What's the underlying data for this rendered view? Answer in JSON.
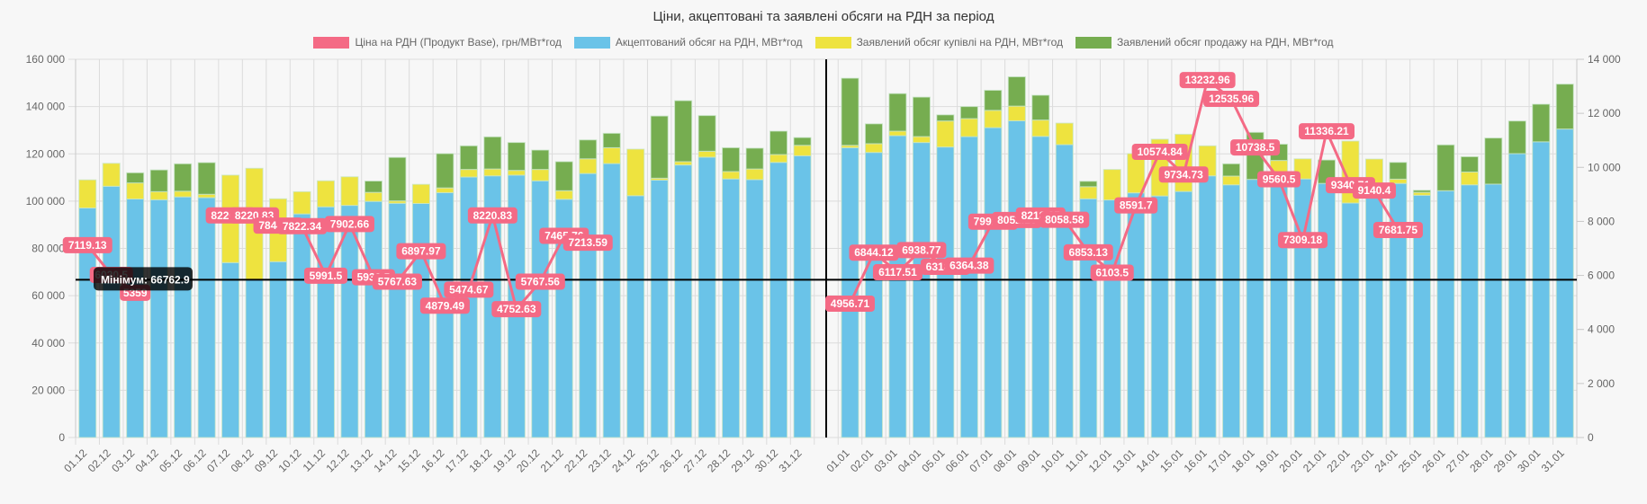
{
  "chart_data": {
    "type": "bar",
    "title": "Ціни, акцептовані та заявлені обсяги на РДН за період",
    "stacked": true,
    "categories": [
      "01.12",
      "02.12",
      "03.12",
      "04.12",
      "05.12",
      "06.12",
      "07.12",
      "08.12",
      "09.12",
      "10.12",
      "11.12",
      "12.12",
      "13.12",
      "14.12",
      "15.12",
      "16.12",
      "17.12",
      "18.12",
      "19.12",
      "20.12",
      "21.12",
      "22.12",
      "23.12",
      "24.12",
      "25.12",
      "26.12",
      "27.12",
      "28.12",
      "29.12",
      "30.12",
      "31.12",
      "01.01",
      "02.01",
      "03.01",
      "04.01",
      "05.01",
      "06.01",
      "07.01",
      "08.01",
      "09.01",
      "10.01",
      "11.01",
      "12.01",
      "13.01",
      "14.01",
      "15.01",
      "16.01",
      "17.01",
      "18.01",
      "19.01",
      "20.01",
      "21.01",
      "22.01",
      "23.01",
      "24.01",
      "25.01",
      "26.01",
      "27.01",
      "28.01",
      "29.01",
      "30.01",
      "31.01"
    ],
    "series": [
      {
        "name": "Ціна на РДН (Продукт Base), грн/МВт*год",
        "type": "line",
        "axis": "right",
        "color": "#f46a85",
        "values": [
          7119.13,
          6020.5,
          5359,
          null,
          null,
          null,
          8220.83,
          8220.83,
          7844.33,
          7822.34,
          5991.5,
          7902.66,
          5932.5,
          5767.63,
          6897.97,
          4879.49,
          5474.67,
          8220.83,
          4752.63,
          5767.56,
          7465.76,
          7213.59,
          null,
          null,
          null,
          null,
          null,
          null,
          null,
          null,
          null,
          4956.71,
          6844.12,
          6117.51,
          6938.77,
          6318.88,
          6364.38,
          7991.24,
          8052.16,
          8218.35,
          8058.58,
          6853.13,
          6103.5,
          8591.7,
          10574.84,
          9734.73,
          13232.96,
          12535.96,
          10738.5,
          9560.5,
          7309.18,
          11336.21,
          9340.71,
          9140.4,
          7681.75,
          null,
          null,
          null,
          null,
          null,
          null,
          null
        ]
      },
      {
        "name": "Акцептований обсяг на РДН, МВт*год",
        "type": "bar",
        "axis": "left",
        "color": "#6ac3e8",
        "values": [
          97100,
          106300,
          100900,
          100600,
          101800,
          101500,
          74000,
          66800,
          74400,
          94600,
          97600,
          98200,
          99900,
          99100,
          99000,
          103600,
          110200,
          110700,
          111000,
          108600,
          100800,
          111700,
          115900,
          102300,
          108900,
          115300,
          118600,
          109400,
          109100,
          116400,
          119200,
          122600,
          120600,
          127700,
          124800,
          122900,
          127300,
          131100,
          134000,
          127400,
          123900,
          101000,
          100500,
          103500,
          102200,
          104100,
          110700,
          106900,
          109200,
          109700,
          109400,
          107500,
          99200,
          103700,
          107500,
          102500,
          104400,
          106900,
          107200,
          120100,
          125100,
          130500
        ]
      },
      {
        "name": "Заявлений обсяг купівлі на РДН, МВт*год",
        "type": "bar",
        "axis": "left",
        "color": "#eee33f",
        "values": [
          11900,
          9700,
          6800,
          3400,
          2400,
          1400,
          37000,
          47100,
          26600,
          9400,
          11000,
          12100,
          3800,
          1000,
          8100,
          2000,
          3200,
          2900,
          2000,
          4800,
          3600,
          6200,
          6700,
          19700,
          800,
          1400,
          2500,
          3100,
          4500,
          3300,
          4400,
          1000,
          3700,
          1900,
          2500,
          11000,
          7600,
          7300,
          6200,
          6900,
          9100,
          5100,
          12900,
          16600,
          24000,
          24200,
          12700,
          3700,
          0,
          7500,
          8500,
          0,
          26200,
          14100,
          1800,
          1200,
          0,
          5400,
          0,
          0,
          0,
          0
        ]
      },
      {
        "name": "Заявлений обсяг продажу на РДН, МВт*год",
        "type": "bar",
        "axis": "left",
        "color": "#76ad50",
        "values": [
          0,
          0,
          4300,
          9200,
          11600,
          13400,
          0,
          0,
          0,
          0,
          0,
          0,
          4800,
          18400,
          0,
          14500,
          10000,
          13600,
          11800,
          8200,
          12300,
          8000,
          6100,
          0,
          26300,
          25800,
          15100,
          10100,
          8800,
          9900,
          3300,
          28400,
          8400,
          15900,
          16700,
          2600,
          5100,
          8500,
          12400,
          10500,
          0,
          2300,
          0,
          0,
          0,
          0,
          0,
          5200,
          19900,
          6900,
          0,
          9900,
          0,
          0,
          7100,
          900,
          19400,
          6500,
          19500,
          13800,
          15900,
          19000
        ]
      }
    ],
    "y_left": {
      "min": 0,
      "max": 160000,
      "ticks": [
        "0",
        "20 000",
        "40 000",
        "60 000",
        "80 000",
        "100 000",
        "120 000",
        "140 000",
        "160 000"
      ]
    },
    "y_right": {
      "min": 0,
      "max": 14000,
      "ticks": [
        "0",
        "2 000",
        "4 000",
        "6 000",
        "8 000",
        "10 000",
        "12 000",
        "14 000"
      ]
    },
    "annotations": {
      "horizontal_line": {
        "value": 66762.9,
        "axis": "left",
        "label": "Мінімум: 66762.9"
      },
      "vertical_line_between": [
        "31.12",
        "01.01"
      ]
    },
    "legend_position": "top",
    "grid": true
  }
}
